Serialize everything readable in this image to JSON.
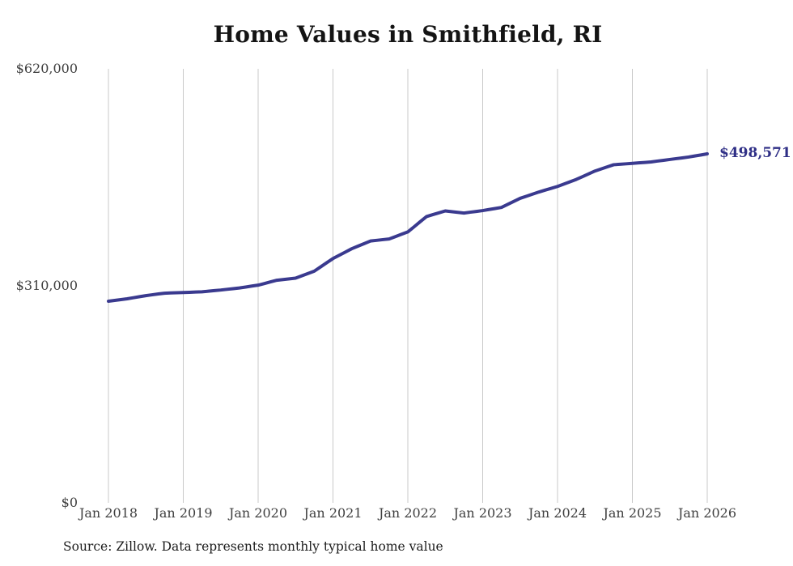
{
  "chart": {
    "title": "Home Values in Smithfield, RI",
    "annotation_label": "$498,571",
    "source_note": "Source: Zillow. Data represents monthly typical home value"
  },
  "colors": {
    "background": "#ffffff",
    "line": "#3a3a8f",
    "annotation_text": "#2f2f86",
    "gridline": "#c9c9c9",
    "axis_text": "#3f3f3f",
    "title_text": "#141414",
    "source_text": "#1c1c1c"
  },
  "chart_data": {
    "type": "line",
    "title": "Home Values in Smithfield, RI",
    "xlabel": "",
    "ylabel": "",
    "x_tick_labels": [
      "Jan 2018",
      "Jan 2019",
      "Jan 2020",
      "Jan 2021",
      "Jan 2022",
      "Jan 2023",
      "Jan 2024",
      "Jan 2025",
      "Jan 2026"
    ],
    "y_ticks": [
      {
        "value": 0,
        "label": "$0"
      },
      {
        "value": 310000,
        "label": "$310,000"
      },
      {
        "value": 620000,
        "label": "$620,000"
      }
    ],
    "ylim": [
      0,
      620000
    ],
    "grid": "vertical gridlines at each January only; no horizontal gridlines; no axis frame",
    "legend_position": "none",
    "annotation": {
      "text": "$498,571",
      "attached_to": "last point"
    },
    "series": [
      {
        "name": "Monthly typical home value",
        "start_month": "2018-01",
        "end_month": "2026-01",
        "frequency": "monthly",
        "final_value": 498571,
        "values": [
          288000,
          289200,
          290300,
          291500,
          293000,
          294500,
          296000,
          297200,
          298400,
          299500,
          299900,
          300200,
          300500,
          300800,
          301200,
          301500,
          302300,
          303200,
          304000,
          305000,
          306000,
          307000,
          308300,
          309700,
          311000,
          313300,
          315700,
          318000,
          319000,
          320000,
          321000,
          324300,
          327700,
          331000,
          337000,
          343000,
          349000,
          353700,
          358300,
          363000,
          366700,
          370300,
          374000,
          375000,
          376000,
          377000,
          380300,
          383700,
          387000,
          394300,
          401700,
          409000,
          411700,
          414300,
          417000,
          416000,
          415000,
          414000,
          415200,
          416300,
          417500,
          419000,
          420500,
          422000,
          426300,
          430700,
          435000,
          438000,
          441000,
          444000,
          446700,
          449300,
          452000,
          455300,
          458700,
          462000,
          466000,
          470000,
          474000,
          477000,
          480000,
          483000,
          483700,
          484300,
          485000,
          485700,
          486300,
          487000,
          488200,
          489300,
          490500,
          491700,
          492800,
          494000,
          495500,
          497000,
          498571
        ]
      }
    ]
  }
}
